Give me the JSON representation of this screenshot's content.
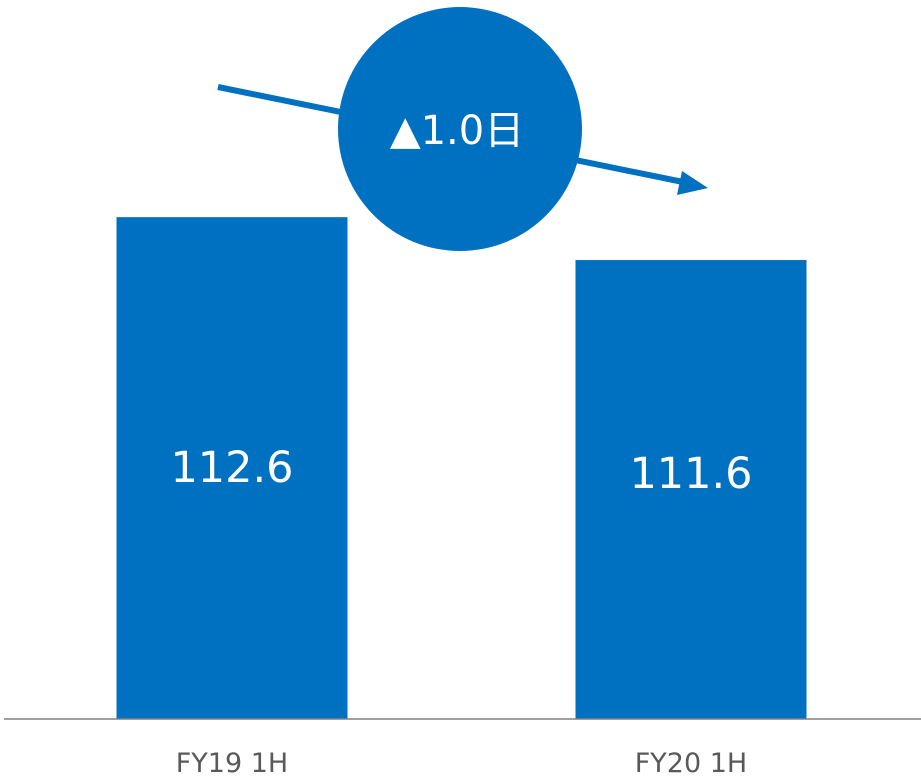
{
  "colors": {
    "bar": "#0070c0",
    "axis": "#808080",
    "tick_text": "#595959",
    "callout": "#0070c0"
  },
  "chart_data": {
    "type": "bar",
    "categories": [
      "FY19 1H",
      "FY20 1H"
    ],
    "values": [
      112.6,
      111.6
    ],
    "value_labels": [
      "112.6",
      "111.6"
    ],
    "ylim": [
      100.9,
      113.0
    ],
    "grid": false,
    "legend": "none",
    "annotation": {
      "text": "▲1.0日",
      "shape": "circle-with-downward-arrow"
    }
  }
}
